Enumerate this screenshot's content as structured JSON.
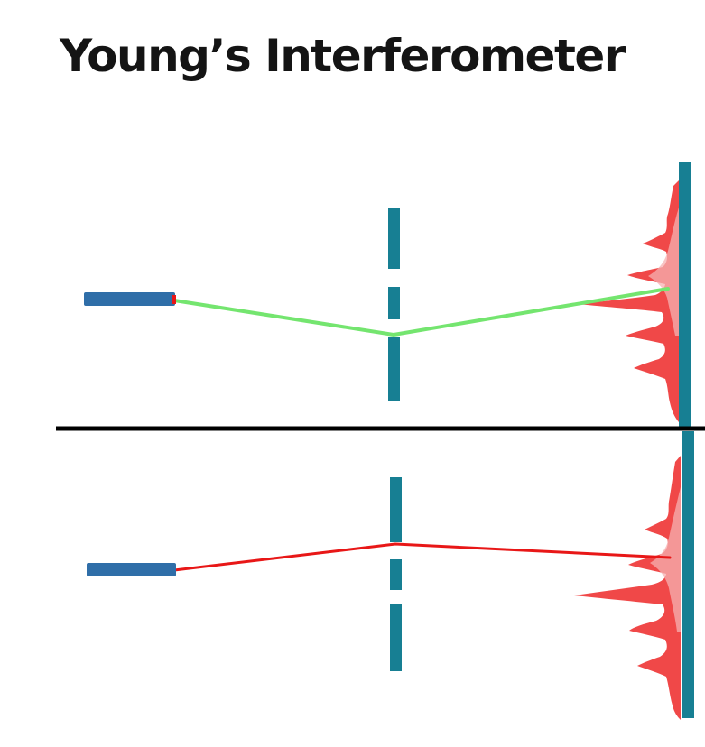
{
  "title": "Young’s Interferometer",
  "colors": {
    "background": "#ffffff",
    "title_text": "#141414",
    "source": "#2f6ea8",
    "slit_wall": "#177f93",
    "screen": "#177f93",
    "divider": "#000000",
    "ray_top": "#74e56f",
    "ray_bottom": "#e81717",
    "pattern_fill": "#ef3e3e",
    "pattern_fill_light": "#f6b2b2"
  },
  "panels": [
    {
      "name": "top",
      "ray_color_key": "ray_top",
      "source_icon": "light-source-bar",
      "barrier_icon": "double-slit-barrier",
      "screen_icon": "detection-screen",
      "pattern_icon": "interference-pattern"
    },
    {
      "name": "bottom",
      "ray_color_key": "ray_bottom",
      "source_icon": "light-source-bar",
      "barrier_icon": "double-slit-barrier",
      "screen_icon": "detection-screen",
      "pattern_icon": "interference-pattern"
    }
  ]
}
